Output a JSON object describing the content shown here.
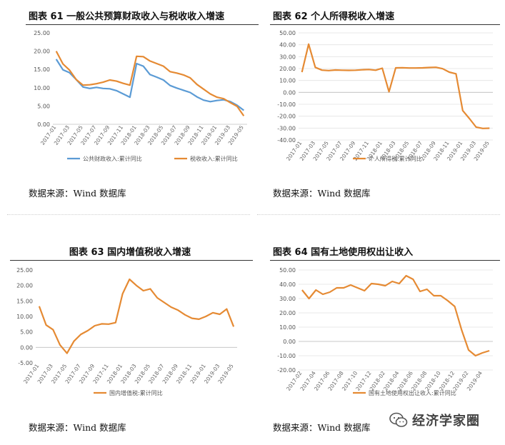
{
  "panels": [
    {
      "title": "图表 61  一般公共预算财政收入与税收收入增速",
      "source": "数据来源：Wind 数据库"
    },
    {
      "title": "图表 62  个人所得税收入增速",
      "source": "数据来源：Wind 数据库"
    },
    {
      "title": "图表 63  国内增值税收入增速",
      "source": "数据来源：Wind 数据库"
    },
    {
      "title": "图表 64  国有土地使用权出让收入",
      "source": "数据来源：Wind 数据库"
    }
  ],
  "brand": {
    "text": "经济学家圈",
    "icon": "wechat-icon"
  },
  "colors": {
    "blue": "#5b9bd5",
    "orange": "#e58a33"
  },
  "chart_data": [
    {
      "type": "line",
      "title": "",
      "xlabel": "",
      "ylabel": "",
      "ylim": [
        0,
        25
      ],
      "yticks": [
        "0.00",
        "5.00",
        "10.00",
        "15.00",
        "20.00",
        "25.00"
      ],
      "x_tick_labels": [
        "2017-01",
        "2017-03",
        "2017-05",
        "2017-07",
        "2017-09",
        "2017-11",
        "2018-01",
        "2018-03",
        "2018-05",
        "2018-07",
        "2018-09",
        "2018-11",
        "2019-01",
        "2019-03",
        "2019-05"
      ],
      "x": [
        "2017-01",
        "2017-02",
        "2017-03",
        "2017-04",
        "2017-05",
        "2017-06",
        "2017-07",
        "2017-08",
        "2017-09",
        "2017-10",
        "2017-11",
        "2017-12",
        "2018-01",
        "2018-02",
        "2018-03",
        "2018-04",
        "2018-05",
        "2018-06",
        "2018-07",
        "2018-08",
        "2018-09",
        "2018-10",
        "2018-11",
        "2018-12",
        "2019-01",
        "2019-02",
        "2019-03",
        "2019-04",
        "2019-05"
      ],
      "series": [
        {
          "name": "公共财政收入:累计同比",
          "color": "#5b9bd5",
          "values": [
            17.8,
            14.9,
            14.1,
            12.2,
            10.2,
            9.8,
            10.1,
            9.8,
            9.7,
            9.2,
            8.3,
            7.4,
            16.6,
            15.9,
            13.6,
            12.9,
            12.1,
            10.6,
            9.9,
            9.3,
            8.7,
            7.5,
            6.6,
            6.2,
            6.5,
            6.7,
            6.2,
            5.2,
            3.8
          ]
        },
        {
          "name": "税收收入:累计同比",
          "color": "#e58a33",
          "values": [
            20.0,
            16.5,
            14.8,
            12.2,
            10.7,
            10.8,
            11.1,
            11.5,
            12.1,
            11.8,
            11.2,
            10.7,
            18.6,
            18.5,
            17.3,
            16.6,
            15.9,
            14.4,
            14.0,
            13.5,
            12.7,
            10.9,
            9.6,
            8.3,
            7.4,
            7.0,
            5.9,
            4.9,
            2.3
          ]
        }
      ],
      "legend": "bottom"
    },
    {
      "type": "line",
      "title": "",
      "xlabel": "",
      "ylabel": "",
      "ylim": [
        -40,
        50
      ],
      "yticks": [
        "-40.00",
        "-30.00",
        "-20.00",
        "-10.00",
        "0.00",
        "10.00",
        "20.00",
        "30.00",
        "40.00",
        "50.00"
      ],
      "x_tick_labels": [
        "2017-01",
        "2017-03",
        "2017-05",
        "2017-07",
        "2017-09",
        "2017-11",
        "2018-01",
        "2018-03",
        "2018-05",
        "2018-07",
        "2018-09",
        "2018-11",
        "2019-01",
        "2019-03",
        "2019-05"
      ],
      "x": [
        "2017-01",
        "2017-02",
        "2017-03",
        "2017-04",
        "2017-05",
        "2017-06",
        "2017-07",
        "2017-08",
        "2017-09",
        "2017-10",
        "2017-11",
        "2017-12",
        "2018-01",
        "2018-02",
        "2018-03",
        "2018-04",
        "2018-05",
        "2018-06",
        "2018-07",
        "2018-08",
        "2018-09",
        "2018-10",
        "2018-11",
        "2018-12",
        "2019-01",
        "2019-02",
        "2019-03",
        "2019-04",
        "2019-05"
      ],
      "series": [
        {
          "name": "个人所得税:累计同比",
          "color": "#e58a33",
          "values": [
            17.0,
            40.5,
            21.0,
            18.7,
            18.3,
            18.8,
            18.6,
            18.5,
            18.6,
            19.0,
            19.2,
            18.6,
            20.3,
            0.5,
            20.6,
            20.7,
            20.5,
            20.5,
            20.6,
            20.9,
            21.1,
            19.9,
            17.0,
            15.6,
            -15.3,
            -22.0,
            -29.2,
            -30.3,
            -30.1
          ]
        }
      ],
      "legend": "bottom"
    },
    {
      "type": "line",
      "title": "",
      "xlabel": "",
      "ylabel": "",
      "ylim": [
        -5,
        25
      ],
      "yticks": [
        "-5.00",
        "0.00",
        "5.00",
        "10.00",
        "15.00",
        "20.00",
        "25.00"
      ],
      "x_tick_labels": [
        "2017-01",
        "2017-03",
        "2017-05",
        "2017-07",
        "2017-09",
        "2017-11",
        "2018-01",
        "2018-03",
        "2018-05",
        "2018-07",
        "2018-09",
        "2018-11",
        "2019-01",
        "2019-03",
        "2019-05"
      ],
      "x": [
        "2017-01",
        "2017-02",
        "2017-03",
        "2017-04",
        "2017-05",
        "2017-06",
        "2017-07",
        "2017-08",
        "2017-09",
        "2017-10",
        "2017-11",
        "2017-12",
        "2018-01",
        "2018-02",
        "2018-03",
        "2018-04",
        "2018-05",
        "2018-06",
        "2018-07",
        "2018-08",
        "2018-09",
        "2018-10",
        "2018-11",
        "2018-12",
        "2019-01",
        "2019-02",
        "2019-03",
        "2019-04",
        "2019-05"
      ],
      "series": [
        {
          "name": "国内增值税:累计同比",
          "color": "#e58a33",
          "values": [
            13.3,
            7.2,
            5.7,
            0.8,
            -1.9,
            2.0,
            4.2,
            5.4,
            7.0,
            7.6,
            7.5,
            8.0,
            17.3,
            22.0,
            20.0,
            18.3,
            18.9,
            16.0,
            14.5,
            13.0,
            12.0,
            10.5,
            9.4,
            9.1,
            10.0,
            11.2,
            10.7,
            12.4,
            6.7
          ]
        }
      ],
      "legend": "bottom"
    },
    {
      "type": "line",
      "title": "",
      "xlabel": "",
      "ylabel": "",
      "ylim": [
        -20,
        50
      ],
      "yticks": [
        "-20.00",
        "-10.00",
        "0.00",
        "10.00",
        "20.00",
        "30.00",
        "40.00",
        "50.00"
      ],
      "x_tick_labels": [
        "2017-02",
        "2017-04",
        "2017-06",
        "2017-08",
        "2017-10",
        "2017-12",
        "2018-02",
        "2018-04",
        "2018-06",
        "2018-08",
        "2018-10",
        "2018-12",
        "2019-02",
        "2019-04"
      ],
      "x": [
        "2017-02",
        "2017-03",
        "2017-04",
        "2017-05",
        "2017-06",
        "2017-07",
        "2017-08",
        "2017-09",
        "2017-10",
        "2017-11",
        "2017-12",
        "2018-01",
        "2018-02",
        "2018-03",
        "2018-04",
        "2018-05",
        "2018-06",
        "2018-07",
        "2018-08",
        "2018-09",
        "2018-10",
        "2018-11",
        "2018-12",
        "2019-01",
        "2019-02",
        "2019-03",
        "2019-04",
        "2019-05"
      ],
      "series": [
        {
          "name": "国有土地使用权出让收入:累计同比",
          "color": "#e58a33",
          "values": [
            36.0,
            30.0,
            36.0,
            33.0,
            34.5,
            37.5,
            37.5,
            39.5,
            37.5,
            35.5,
            40.5,
            40.0,
            39.0,
            42.0,
            40.5,
            46.0,
            43.5,
            35.0,
            36.5,
            32.0,
            32.0,
            28.5,
            24.5,
            8.0,
            -6.0,
            -10.0,
            -8.0,
            -6.5
          ]
        }
      ],
      "legend": "bottom"
    }
  ]
}
